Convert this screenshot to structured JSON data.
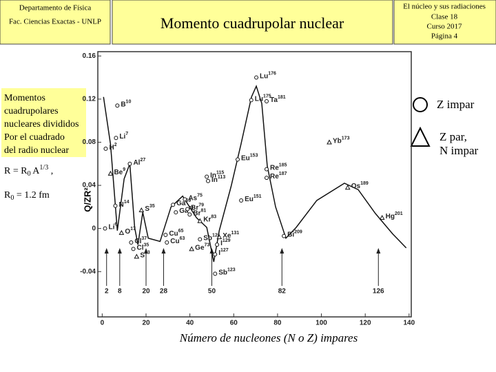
{
  "header": {
    "left": [
      "Departamento de Física",
      "Fac. Ciencias Exactas - UNLP"
    ],
    "title": "Momento cuadrupolar nuclear",
    "right": [
      "El núcleo y sus radiaciones",
      "Clase 18",
      "Curso 2017",
      "Página 4"
    ]
  },
  "side_text": [
    "Momentos",
    "cuadrupolares",
    "nucleares divididos",
    "Por el cuadrado",
    "del radio nuclear"
  ],
  "formula_radius": [
    "R = R",
    "0",
    " A",
    "1/3",
    " ,"
  ],
  "formula_r0": [
    "R",
    "0",
    " = 1.2 fm"
  ],
  "legend": {
    "circle": "Z impar",
    "triangle": [
      "Z par,",
      "N impar"
    ]
  },
  "chart_data": {
    "type": "scatter",
    "x_label": "Número de  nucleones (N o Z)  impares",
    "y_label": "Q/ZR²",
    "xlim": [
      -2,
      141
    ],
    "ylim": [
      -0.082,
      0.164
    ],
    "xticks": [
      0,
      20,
      40,
      60,
      80,
      100,
      120,
      140
    ],
    "yticks": [
      -0.04,
      0,
      0.04,
      0.08,
      0.12,
      0.16
    ],
    "magic_numbers": [
      2,
      8,
      20,
      28,
      50,
      82,
      126
    ],
    "curve": {
      "x": [
        0.6,
        3.8,
        6.9,
        10.0,
        12.6,
        14.8,
        16.3,
        18.5,
        21.0,
        26.4,
        31.4,
        36.7,
        43.0,
        47.7,
        50.9,
        53.4,
        58.8,
        63.3,
        68.1,
        70.3,
        72.8,
        75.3,
        79.1,
        83.8,
        88.5,
        97.9,
        110.5,
        116.8,
        124.6,
        132.5,
        138.7
      ],
      "y": [
        0.122,
        0.078,
        -0.002,
        0.046,
        0.06,
        0.001,
        -0.015,
        0.015,
        -0.009,
        -0.012,
        0.02,
        0.03,
        0.01,
        0.001,
        -0.031,
        -0.002,
        0.039,
        0.078,
        0.122,
        0.132,
        0.116,
        0.058,
        0.02,
        -0.009,
        0.001,
        0.026,
        0.042,
        0.036,
        0.014,
        -0.005,
        -0.018
      ]
    },
    "points": [
      {
        "label": "Lu",
        "sup": "176",
        "shape": "circle",
        "x": 70.3,
        "y": 0.14
      },
      {
        "label": "Lu",
        "sup": "175",
        "shape": "circle",
        "x": 68.0,
        "y": 0.119
      },
      {
        "label": "Ta",
        "sup": "181",
        "shape": "circle",
        "x": 75.0,
        "y": 0.118
      },
      {
        "label": "B",
        "sup": "10",
        "shape": "circle",
        "x": 6.9,
        "y": 0.114
      },
      {
        "label": "Li",
        "sup": "7",
        "shape": "circle",
        "x": 6.3,
        "y": 0.084
      },
      {
        "label": "H",
        "sup": "2",
        "shape": "circle",
        "x": 1.6,
        "y": 0.074
      },
      {
        "label": "Al",
        "sup": "27",
        "shape": "circle",
        "x": 12.6,
        "y": 0.06
      },
      {
        "label": "Be",
        "sup": "9",
        "shape": "triangle",
        "x": 3.8,
        "y": 0.051
      },
      {
        "label": "Yb",
        "sup": "173",
        "shape": "triangle",
        "x": 103.6,
        "y": 0.08
      },
      {
        "label": "Eu",
        "sup": "153",
        "shape": "circle",
        "x": 61.8,
        "y": 0.064
      },
      {
        "label": "Re",
        "sup": "185",
        "shape": "circle",
        "x": 75.0,
        "y": 0.055
      },
      {
        "label": "Re",
        "sup": "187",
        "shape": "circle",
        "x": 75.0,
        "y": 0.047
      },
      {
        "label": "In",
        "sup": "115",
        "shape": "circle",
        "x": 47.7,
        "y": 0.048
      },
      {
        "label": "In",
        "sup": "113",
        "shape": "circle",
        "x": 48.3,
        "y": 0.044
      },
      {
        "label": "Os",
        "sup": "189",
        "shape": "triangle",
        "x": 112.0,
        "y": 0.038
      },
      {
        "label": "Eu",
        "sup": "151",
        "shape": "circle",
        "x": 63.4,
        "y": 0.026
      },
      {
        "label": "N",
        "sup": "14",
        "shape": "circle",
        "x": 6.0,
        "y": 0.021
      },
      {
        "label": "S",
        "sup": "35",
        "shape": "triangle",
        "x": 17.9,
        "y": 0.017
      },
      {
        "label": "Ga",
        "sup": "69",
        "shape": "circle",
        "x": 32.3,
        "y": 0.022
      },
      {
        "label": "As",
        "sup": "75",
        "shape": "circle",
        "x": 37.7,
        "y": 0.027
      },
      {
        "label": "Ga",
        "sup": "71",
        "shape": "circle",
        "x": 33.6,
        "y": 0.015
      },
      {
        "label": "Br",
        "sup": "79",
        "shape": "circle",
        "x": 38.9,
        "y": 0.018
      },
      {
        "label": "Br",
        "sup": "81",
        "shape": "circle",
        "x": 39.9,
        "y": 0.013
      },
      {
        "label": "Kr",
        "sup": "83",
        "shape": "triangle",
        "x": 44.6,
        "y": 0.007
      },
      {
        "label": "Hg",
        "sup": "201",
        "shape": "triangle",
        "x": 127.7,
        "y": 0.01
      },
      {
        "label": "Li",
        "sup": "6",
        "shape": "circle",
        "x": 1.3,
        "y": 0.0
      },
      {
        "label": "O",
        "sup": "17",
        "shape": "triangle",
        "x": 8.8,
        "y": -0.004
      },
      {
        "label": "Cu",
        "sup": "65",
        "shape": "circle",
        "x": 28.9,
        "y": -0.006
      },
      {
        "label": "Cu",
        "sup": "63",
        "shape": "circle",
        "x": 29.5,
        "y": -0.013
      },
      {
        "label": "Cl",
        "sup": "37",
        "shape": "circle",
        "x": 13.2,
        "y": -0.013
      },
      {
        "label": "Cl",
        "sup": "35",
        "shape": "circle",
        "x": 14.2,
        "y": -0.019
      },
      {
        "label": "S",
        "sup": "33",
        "shape": "triangle",
        "x": 15.7,
        "y": -0.026
      },
      {
        "label": "Sb",
        "sup": "121",
        "shape": "circle",
        "x": 44.6,
        "y": -0.01
      },
      {
        "label": "Xe",
        "sup": "131",
        "shape": "triangle",
        "x": 53.4,
        "y": -0.008
      },
      {
        "label": "Bi",
        "sup": "209",
        "shape": "circle",
        "x": 82.9,
        "y": -0.007
      },
      {
        "label": "I",
        "sup": "129",
        "shape": "circle",
        "x": 52.4,
        "y": -0.015
      },
      {
        "label": "I",
        "sup": "127",
        "shape": "circle",
        "x": 51.5,
        "y": -0.024
      },
      {
        "label": "Ge",
        "sup": "73",
        "shape": "triangle",
        "x": 40.8,
        "y": -0.019
      },
      {
        "label": "Sb",
        "sup": "123",
        "shape": "circle",
        "x": 51.5,
        "y": -0.042
      }
    ]
  }
}
